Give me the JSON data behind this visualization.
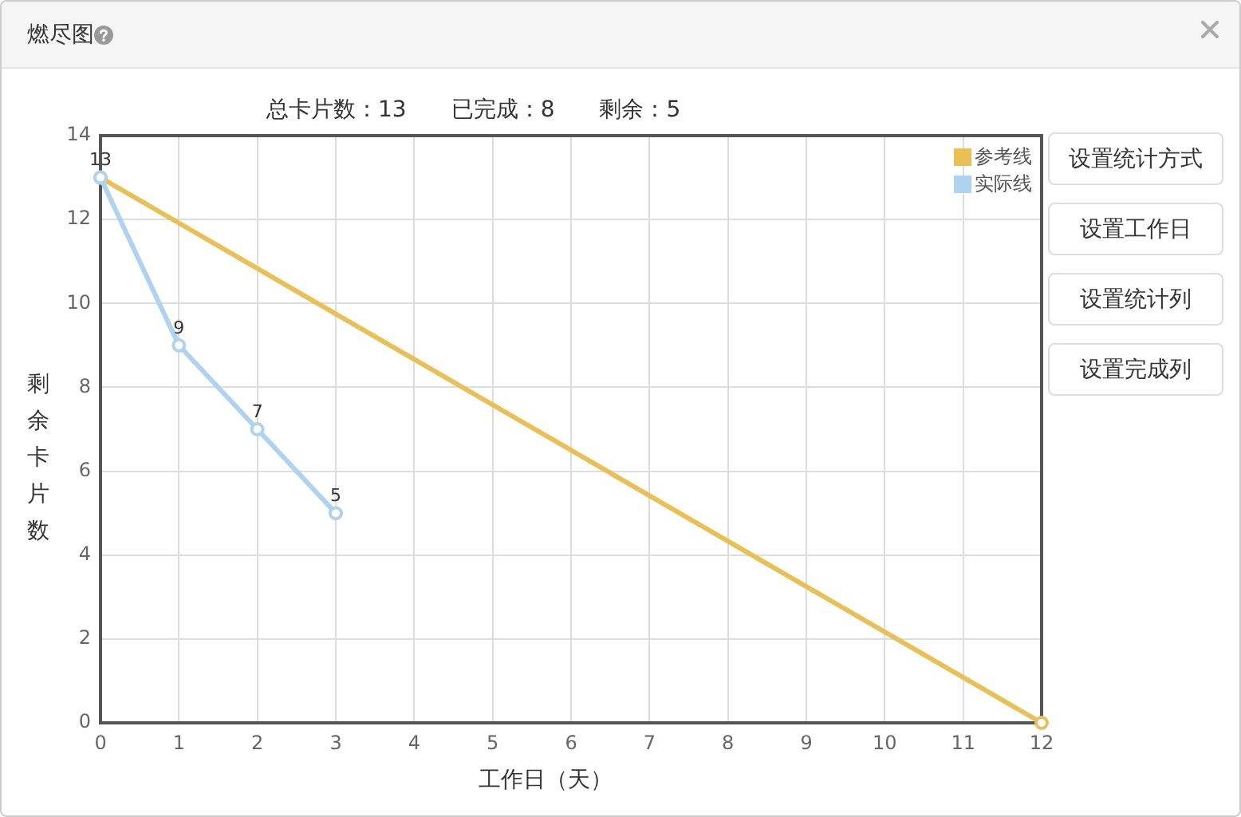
{
  "chart_data": {
    "type": "line",
    "title": "燃尽图",
    "subtitle": "总卡片数：13　　已完成：8　　剩余：5",
    "xlabel": "工作日（天）",
    "ylabel": "剩余卡片数",
    "series": [
      {
        "name": "参考线",
        "color": "#e8c056",
        "x": [
          0,
          12
        ],
        "values": [
          13,
          0
        ]
      },
      {
        "name": "实际线",
        "color": "#afd3ee",
        "x": [
          0,
          1,
          2,
          3
        ],
        "values": [
          13,
          9,
          7,
          5
        ],
        "value_labels": [
          "13",
          "9",
          "7",
          "5"
        ]
      }
    ],
    "xlim": [
      0,
      12
    ],
    "xticks": [
      0,
      1,
      2,
      3,
      4,
      5,
      6,
      7,
      8,
      9,
      10,
      11,
      12
    ],
    "ylim": [
      0,
      14
    ],
    "yticks": [
      0,
      2,
      4,
      6,
      8,
      10,
      12,
      14
    ],
    "grid": true,
    "legend": "top right",
    "marker": "circle",
    "annotations": [
      "设置统计方式",
      "设置工作日",
      "设置统计列",
      "设置完成列"
    ]
  }
}
